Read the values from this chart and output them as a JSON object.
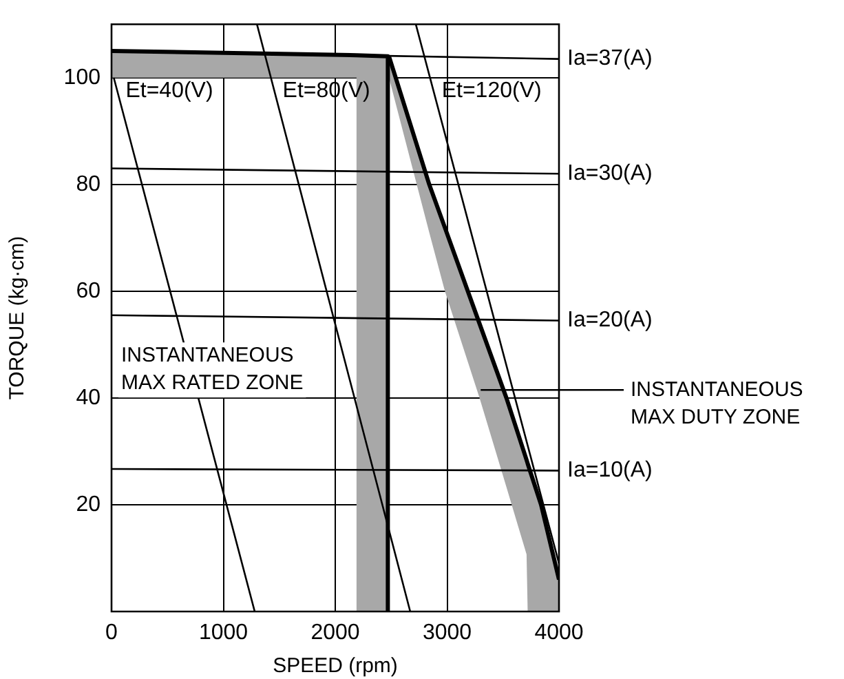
{
  "chart_data": {
    "type": "line",
    "xlabel": "SPEED (rpm)",
    "ylabel": "TORQUE (kg·cm)",
    "xlim": [
      0,
      4000
    ],
    "ylim": [
      0,
      110
    ],
    "xticks": [
      0,
      1000,
      2000,
      3000,
      4000
    ],
    "yticks": [
      20,
      40,
      60,
      80,
      100
    ],
    "grid": true,
    "legend": false,
    "marker": "none",
    "line_style": "solid",
    "series": [
      {
        "color": "#000000",
        "x": [
          0,
          2190,
          2190,
          2470,
          2470
        ],
        "values": [
          105,
          104.2,
          104.2,
          104,
          0
        ],
        "lower": [
          100,
          100,
          0,
          0,
          0
        ],
        "upper": [
          105,
          104.2,
          104.2,
          104,
          0
        ]
      },
      {
        "color": "#000000",
        "x": [
          2480,
          2840,
          2980,
          3290,
          3530,
          3710,
          3720,
          3840,
          4000
        ],
        "values": [
          104,
          80,
          71.9,
          53.9,
          40,
          28.4,
          27.7,
          20,
          6
        ],
        "lower": [
          100,
          71,
          60,
          40,
          23.3,
          10.7,
          0,
          0,
          0
        ],
        "upper": [
          104,
          80,
          71.9,
          53.9,
          40,
          28.4,
          27.7,
          20,
          6
        ]
      },
      {
        "color": "#000000",
        "x": [
          20,
          1280
        ],
        "values": [
          100,
          0
        ]
      },
      {
        "color": "#000000",
        "x": [
          1300,
          2670
        ],
        "values": [
          110,
          0
        ]
      },
      {
        "color": "#000000",
        "x": [
          2720,
          4000
        ],
        "values": [
          110,
          9
        ]
      },
      {
        "color": "#000000",
        "x": [
          0,
          4000
        ],
        "values": [
          105,
          103.5
        ]
      },
      {
        "color": "#000000",
        "x": [
          0,
          4000
        ],
        "values": [
          83,
          82
        ]
      },
      {
        "color": "#000000",
        "x": [
          0,
          4000
        ],
        "values": [
          55.5,
          54.5
        ]
      },
      {
        "color": "#000000",
        "x": [
          0,
          4000
        ],
        "values": [
          26.7,
          26.4
        ]
      }
    ],
    "annotations": [
      {
        "text": "Et=40(V)",
        "x": 52,
        "y": 97.5
      },
      {
        "text": "Et=80(V)",
        "x": 1456,
        "y": 97.5
      },
      {
        "text": "Et=120(V)",
        "x": 2878,
        "y": 97.5
      },
      {
        "text": "Ia=37(A)",
        "x": 4000,
        "y": 103.5
      },
      {
        "text": "Ia=30(A)",
        "x": 4000,
        "y": 82
      },
      {
        "text": "Ia=20(A)",
        "x": 4000,
        "y": 54.5
      },
      {
        "text": "Ia=10(A)",
        "x": 4000,
        "y": 26.4
      },
      "INSTANTANEOUS\nMAX RATED ZONE",
      {
        "text": "INSTANTANEOUS\nMAX DUTY ZONE",
        "x": 3300,
        "y": 41.5
      }
    ]
  }
}
